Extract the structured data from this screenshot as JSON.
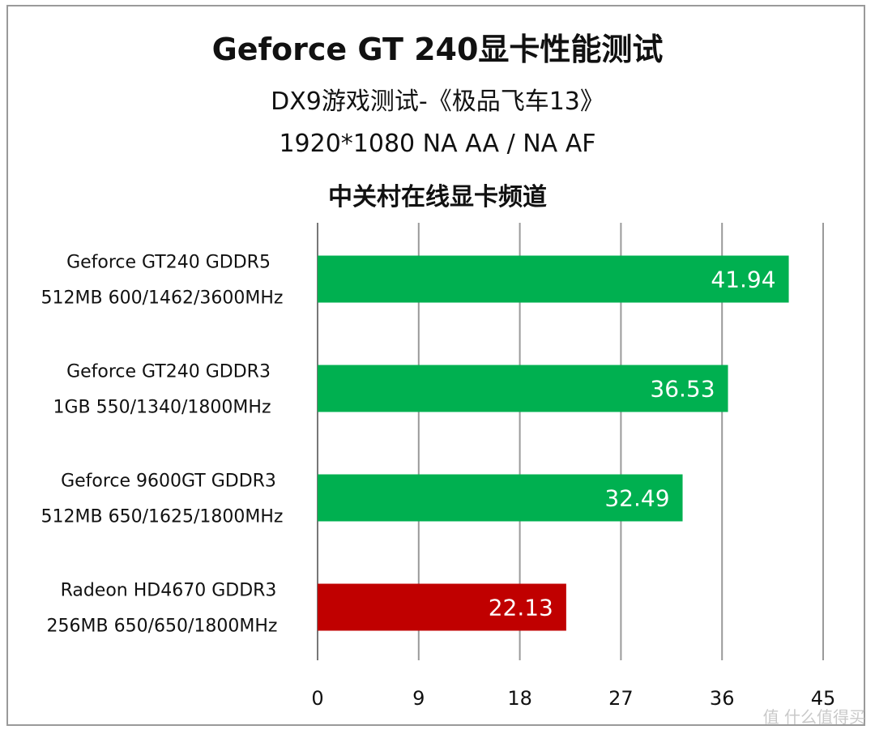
{
  "title": "Geforce GT 240显卡性能测试",
  "subtitle_1": "DX9游戏测试-《极品飞车13》",
  "subtitle_2": "1920*1080  NA AA / NA AF",
  "subtitle_3": "中关村在线显卡频道",
  "watermark": "值 什么值得买",
  "chart_data": {
    "type": "bar",
    "orientation": "horizontal",
    "categories": [
      [
        "Geforce GT240 GDDR5",
        "512MB 600/1462/3600MHz"
      ],
      [
        "Geforce GT240 GDDR3",
        "1GB 550/1340/1800MHz"
      ],
      [
        "Geforce 9600GT GDDR3",
        "512MB 650/1625/1800MHz"
      ],
      [
        "Radeon HD4670 GDDR3",
        "256MB 650/650/1800MHz"
      ]
    ],
    "values": [
      41.94,
      36.53,
      32.49,
      22.13
    ],
    "value_labels": [
      "41.94",
      "36.53",
      "32.49",
      "22.13"
    ],
    "colors": [
      "#00b050",
      "#00b050",
      "#00b050",
      "#c00000"
    ],
    "xticks": [
      0,
      9,
      18,
      27,
      36,
      45
    ],
    "xlim": [
      0,
      45
    ],
    "grid": true,
    "xlabel": "",
    "ylabel": ""
  }
}
